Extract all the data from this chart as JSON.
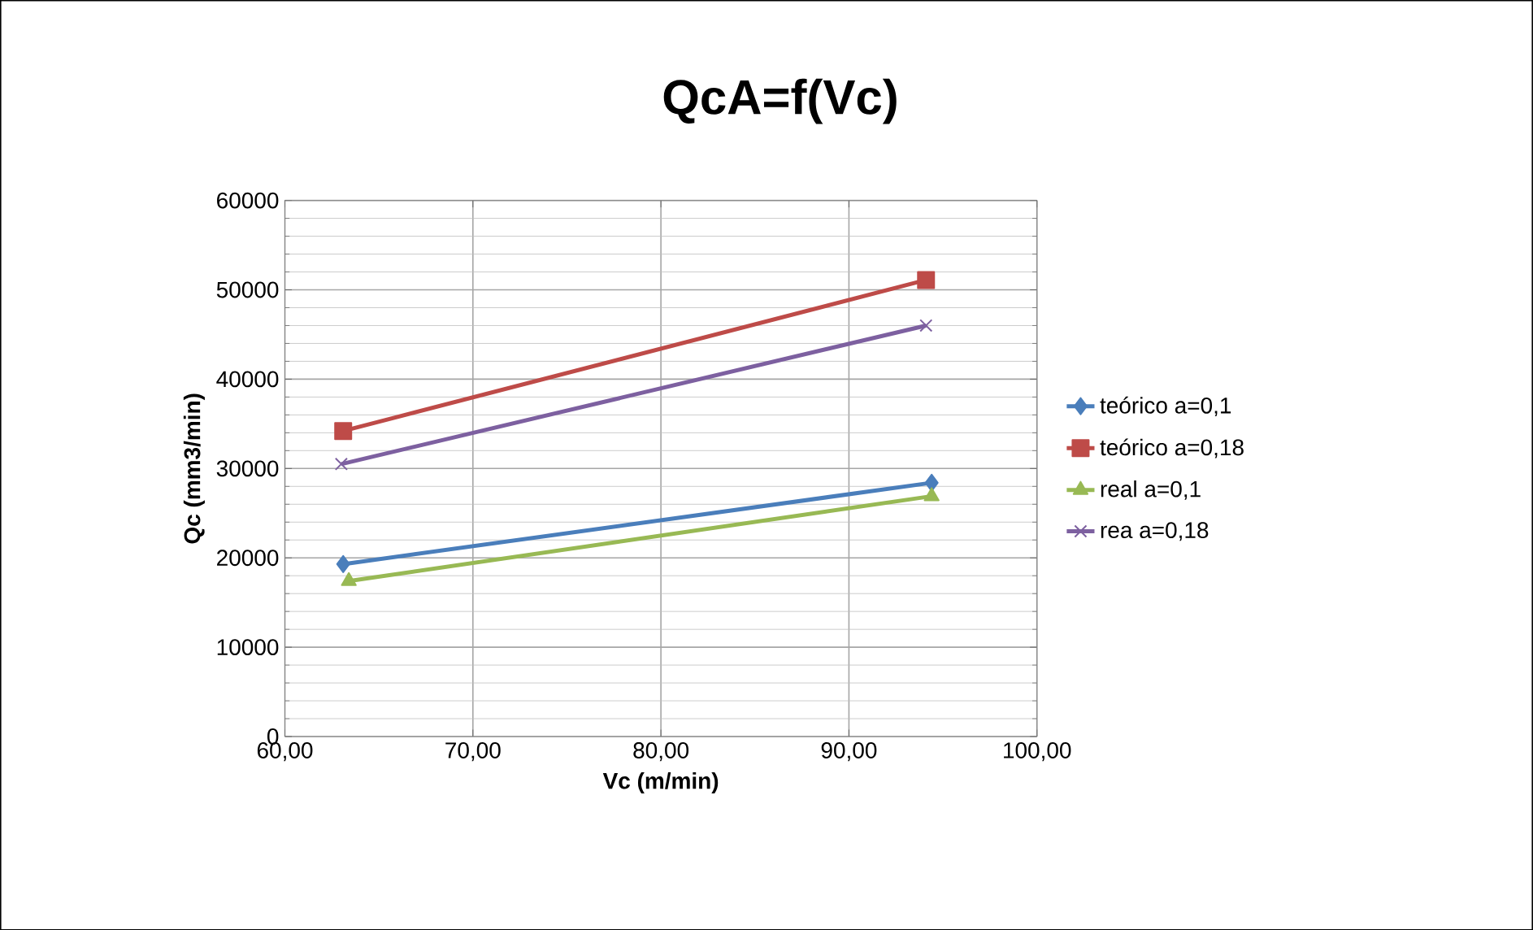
{
  "chart_data": {
    "type": "line",
    "title": "QcA=f(Vc)",
    "xlabel": "Vc (m/min)",
    "ylabel": "Qc (mm3/min)",
    "xlim": [
      60,
      100
    ],
    "xticks": [
      {
        "value": 60,
        "label": "60,00"
      },
      {
        "value": 70,
        "label": "70,00"
      },
      {
        "value": 80,
        "label": "80,00"
      },
      {
        "value": 90,
        "label": "90,00"
      },
      {
        "value": 100,
        "label": "100,00"
      }
    ],
    "ylim": [
      0,
      60000
    ],
    "yticks": [
      0,
      10000,
      20000,
      30000,
      40000,
      50000,
      60000
    ],
    "grid": true,
    "legend": "right",
    "series": [
      {
        "name": "teórico a=0,1",
        "color": "#4a7ebb",
        "marker": "diamond",
        "x": [
          63.1,
          94.4
        ],
        "values": [
          19300,
          28400
        ]
      },
      {
        "name": "teórico a=0,18",
        "color": "#be4b48",
        "marker": "square",
        "x": [
          63.1,
          94.1
        ],
        "values": [
          34200,
          51100
        ]
      },
      {
        "name": "real a=0,1",
        "color": "#98b954",
        "marker": "triangle",
        "x": [
          63.4,
          94.4
        ],
        "values": [
          17400,
          26900
        ]
      },
      {
        "name": "rea a=0,18",
        "color": "#7d60a0",
        "marker": "cross",
        "x": [
          63.0,
          94.1
        ],
        "values": [
          30500,
          46000
        ]
      }
    ]
  }
}
